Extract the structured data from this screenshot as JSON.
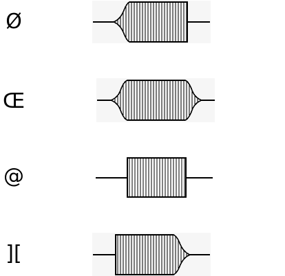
{
  "rows": [
    {
      "symbol": "Ø",
      "shape": "left-flare"
    },
    {
      "symbol": "Œ",
      "shape": "both-flare"
    },
    {
      "symbol": "@",
      "shape": "plain"
    },
    {
      "symbol": "][",
      "shape": "right-flare"
    }
  ],
  "colors": {
    "stroke": "#000000",
    "background": "#ffffff",
    "panel": "#f6f6f6"
  }
}
